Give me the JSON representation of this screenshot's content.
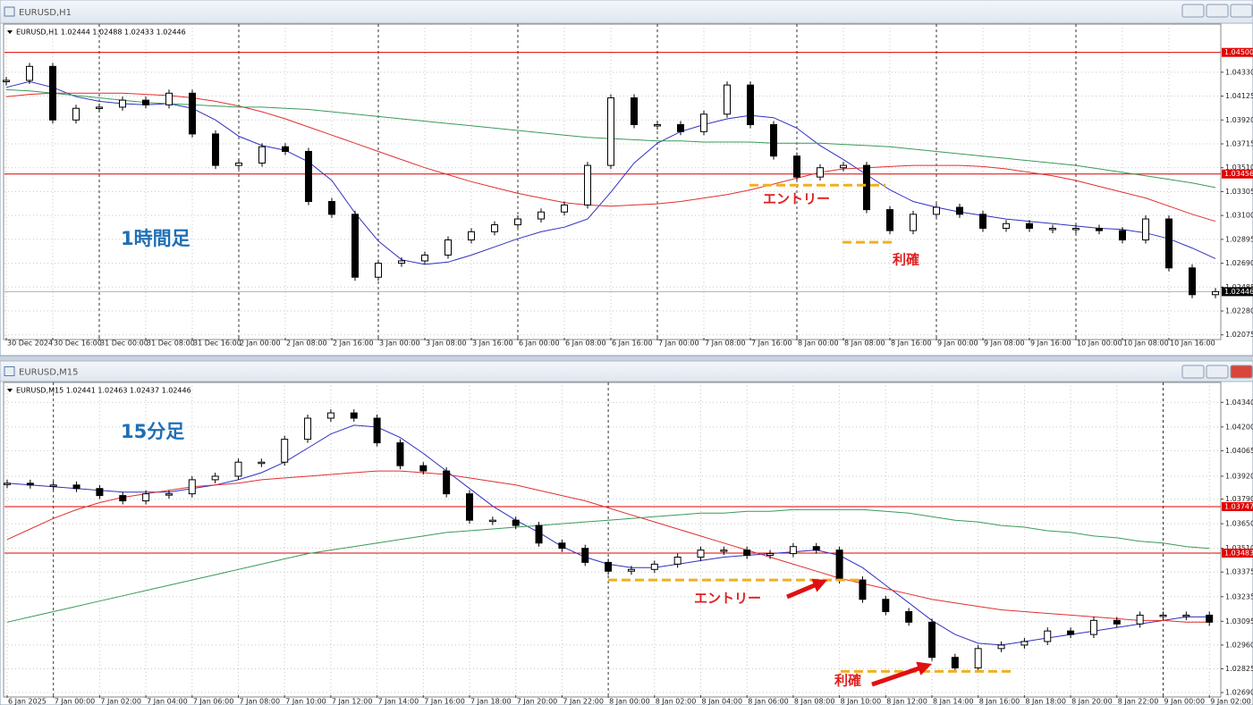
{
  "windows": [
    {
      "title": "EURUSD,H1",
      "chart_data": {
        "type": "candlestick",
        "info": "EURUSD,H1  1.02444 1.02488 1.02433 1.02446",
        "label": "1時間足",
        "categories": [
          "30 Dec 2024",
          null,
          "30 Dec 16:00",
          null,
          "31 Dec 00:00",
          null,
          "31 Dec 08:00",
          null,
          "31 Dec 16:00",
          null,
          "2 Jan 00:00",
          null,
          "2 Jan 08:00",
          null,
          "2 Jan 16:00",
          null,
          "3 Jan 00:00",
          null,
          "3 Jan 08:00",
          null,
          "3 Jan 16:00",
          null,
          "6 Jan 00:00",
          null,
          "6 Jan 08:00",
          null,
          "6 Jan 16:00",
          null,
          "7 Jan 00:00",
          null,
          "7 Jan 08:00",
          null,
          "7 Jan 16:00",
          null,
          "8 Jan 00:00",
          null,
          "8 Jan 08:00",
          null,
          "8 Jan 16:00",
          null,
          "9 Jan 00:00",
          null,
          "9 Jan 08:00",
          null,
          "9 Jan 16:00",
          null,
          "10 Jan 00:00",
          null,
          "10 Jan 08:00",
          null,
          "10 Jan 16:00",
          null,
          null
        ],
        "values": [
          1.0426,
          1.0438,
          1.0392,
          1.0402,
          1.0403,
          1.0409,
          1.0405,
          1.0415,
          1.038,
          1.0353,
          1.0355,
          1.0369,
          1.0365,
          1.0322,
          1.0311,
          1.0257,
          1.0269,
          1.0271,
          1.0276,
          1.0289,
          1.0296,
          1.0302,
          1.0307,
          1.0313,
          1.0319,
          1.0353,
          1.0411,
          1.0388,
          1.0388,
          1.0382,
          1.0397,
          1.0422,
          1.0388,
          1.0361,
          1.0343,
          1.0351,
          1.0353,
          1.0315,
          1.0297,
          1.0311,
          1.0317,
          1.0311,
          1.0299,
          1.0303,
          1.0299,
          1.0299,
          1.0299,
          1.0297,
          1.0289,
          1.0307,
          1.0265,
          1.0242,
          1.02446
        ],
        "series": [
          {
            "color": "#3030c0",
            "values": [
              1.042,
              1.0425,
              1.042,
              1.0412,
              1.0408,
              1.0406,
              1.0405,
              1.0406,
              1.0402,
              1.0392,
              1.0378,
              1.037,
              1.0366,
              1.0356,
              1.034,
              1.0312,
              1.0288,
              1.0272,
              1.0268,
              1.027,
              1.0276,
              1.0283,
              1.029,
              1.0296,
              1.03,
              1.0307,
              1.033,
              1.0355,
              1.0372,
              1.0382,
              1.0388,
              1.0393,
              1.0396,
              1.0394,
              1.0385,
              1.037,
              1.0358,
              1.0345,
              1.0332,
              1.0322,
              1.0317,
              1.0313,
              1.031,
              1.0307,
              1.0305,
              1.0303,
              1.0301,
              1.0299,
              1.0298,
              1.0295,
              1.029,
              1.0282,
              1.0273
            ]
          },
          {
            "color": "#e03030",
            "values": [
              1.0412,
              1.0414,
              1.0415,
              1.0415,
              1.0415,
              1.0415,
              1.0414,
              1.0413,
              1.0411,
              1.0408,
              1.0404,
              1.0399,
              1.0393,
              1.0386,
              1.0379,
              1.0372,
              1.0365,
              1.0358,
              1.0351,
              1.0345,
              1.0339,
              1.0334,
              1.0329,
              1.0325,
              1.0321,
              1.0319,
              1.0318,
              1.0319,
              1.032,
              1.0322,
              1.0325,
              1.0328,
              1.0332,
              1.0337,
              1.0342,
              1.0347,
              1.035,
              1.0351,
              1.0352,
              1.0353,
              1.0353,
              1.0353,
              1.0352,
              1.035,
              1.0347,
              1.0344,
              1.034,
              1.0335,
              1.033,
              1.0325,
              1.0318,
              1.0311,
              1.0305
            ]
          },
          {
            "color": "#3a9a5a",
            "values": [
              1.0418,
              1.0417,
              1.0415,
              1.0413,
              1.0411,
              1.0409,
              1.0407,
              1.0406,
              1.0405,
              1.0404,
              1.0403,
              1.0403,
              1.0402,
              1.0401,
              1.0399,
              1.0397,
              1.0395,
              1.0393,
              1.0391,
              1.0389,
              1.0387,
              1.0385,
              1.0383,
              1.0381,
              1.0379,
              1.0377,
              1.0376,
              1.0375,
              1.0374,
              1.0374,
              1.0373,
              1.0373,
              1.0373,
              1.0372,
              1.0372,
              1.0372,
              1.0371,
              1.037,
              1.0369,
              1.0367,
              1.0365,
              1.0363,
              1.0361,
              1.0359,
              1.0357,
              1.0355,
              1.0353,
              1.035,
              1.0347,
              1.0344,
              1.0341,
              1.0338,
              1.0334
            ]
          }
        ],
        "hlines": [
          {
            "value": 1.045,
            "label": "1.04500",
            "color": "#e00000"
          },
          {
            "value": 1.03456,
            "label": "1.03456",
            "color": "#e00000"
          },
          {
            "value": 1.02446,
            "label": "1.02446",
            "color": "#000000"
          }
        ],
        "annotations": [
          {
            "text": "エントリー",
            "level": 1.0336
          },
          {
            "text": "利確",
            "level": 1.0287
          }
        ],
        "ylim": [
          1.0205,
          1.0472
        ],
        "yticks": [
          {
            "value": 1.0433,
            "label": "1.04330"
          },
          {
            "value": 1.04125,
            "label": "1.04125"
          },
          {
            "value": 1.0392,
            "label": "1.03920"
          },
          {
            "value": 1.03715,
            "label": "1.03715"
          },
          {
            "value": 1.0351,
            "label": "1.03510"
          },
          {
            "value": 1.03305,
            "label": "1.03305"
          },
          {
            "value": 1.031,
            "label": "1.03100"
          },
          {
            "value": 1.02895,
            "label": "1.02895"
          },
          {
            "value": 1.0269,
            "label": "1.02690"
          },
          {
            "value": 1.02485,
            "label": "1.02485"
          },
          {
            "value": 1.0228,
            "label": "1.02280"
          },
          {
            "value": 1.02075,
            "label": "1.02075"
          }
        ],
        "grid": true
      }
    },
    {
      "title": "EURUSD,M15",
      "chart_data": {
        "type": "candlestick",
        "info": "EURUSD,M15  1.02441 1.02463 1.02437 1.02446",
        "label": "15分足",
        "categories": [
          "6 Jan 2025",
          null,
          "7 Jan 00:00",
          null,
          "7 Jan 02:00",
          null,
          "7 Jan 04:00",
          null,
          "7 Jan 06:00",
          null,
          "7 Jan 08:00",
          null,
          "7 Jan 10:00",
          null,
          "7 Jan 12:00",
          null,
          "7 Jan 14:00",
          null,
          "7 Jan 16:00",
          null,
          "7 Jan 18:00",
          null,
          "7 Jan 20:00",
          null,
          "7 Jan 22:00",
          null,
          "8 Jan 00:00",
          null,
          "8 Jan 02:00",
          null,
          "8 Jan 04:00",
          null,
          "8 Jan 06:00",
          null,
          "8 Jan 08:00",
          null,
          "8 Jan 10:00",
          null,
          "8 Jan 12:00",
          null,
          "8 Jan 14:00",
          null,
          "8 Jan 16:00",
          null,
          "8 Jan 18:00",
          null,
          "8 Jan 20:00",
          null,
          "8 Jan 22:00",
          null,
          "9 Jan 00:00",
          null,
          "9 Jan 02:00"
        ],
        "values": [
          1.0388,
          1.0387,
          1.0387,
          1.0385,
          1.0381,
          1.0378,
          1.0382,
          1.0382,
          1.039,
          1.0392,
          1.04,
          1.04,
          1.0413,
          1.0425,
          1.0428,
          1.0425,
          1.0411,
          1.0398,
          1.0395,
          1.0382,
          1.0367,
          1.0367,
          1.0364,
          1.0354,
          1.0351,
          1.0343,
          1.0338,
          1.0339,
          1.0342,
          1.0346,
          1.035,
          1.035,
          1.0347,
          1.0348,
          1.0352,
          1.035,
          1.0333,
          1.0322,
          1.0315,
          1.0309,
          1.0289,
          1.0283,
          1.0294,
          1.0296,
          1.0298,
          1.0304,
          1.0302,
          1.031,
          1.0308,
          1.0313,
          1.0313,
          1.0313,
          1.0309
        ],
        "series": [
          {
            "color": "#3030c0",
            "values": [
              1.0388,
              1.0387,
              1.0386,
              1.0385,
              1.0384,
              1.0383,
              1.0383,
              1.0383,
              1.0385,
              1.0387,
              1.039,
              1.0394,
              1.04,
              1.0408,
              1.0416,
              1.0421,
              1.042,
              1.0414,
              1.0405,
              1.0395,
              1.0385,
              1.0375,
              1.0367,
              1.036,
              1.0352,
              1.0346,
              1.0342,
              1.034,
              1.034,
              1.0342,
              1.0344,
              1.0346,
              1.0347,
              1.0348,
              1.0349,
              1.035,
              1.0347,
              1.034,
              1.033,
              1.032,
              1.031,
              1.0302,
              1.0297,
              1.0296,
              1.0298,
              1.03,
              1.0302,
              1.0304,
              1.0306,
              1.0308,
              1.031,
              1.0312,
              1.0312
            ]
          },
          {
            "color": "#e03030",
            "values": [
              1.0356,
              1.0362,
              1.0368,
              1.0373,
              1.0377,
              1.038,
              1.0382,
              1.0384,
              1.0386,
              1.0387,
              1.0388,
              1.039,
              1.0391,
              1.0392,
              1.0393,
              1.0394,
              1.0395,
              1.0395,
              1.0394,
              1.0393,
              1.0391,
              1.0389,
              1.0387,
              1.0384,
              1.0381,
              1.0378,
              1.0374,
              1.037,
              1.0366,
              1.0362,
              1.0358,
              1.0354,
              1.035,
              1.0346,
              1.0342,
              1.0338,
              1.0334,
              1.0331,
              1.0328,
              1.0325,
              1.0322,
              1.032,
              1.0318,
              1.0316,
              1.0315,
              1.0314,
              1.0313,
              1.0312,
              1.0311,
              1.031,
              1.031,
              1.0309,
              1.0309
            ]
          },
          {
            "color": "#3a9a5a",
            "values": [
              1.0309,
              1.0312,
              1.0315,
              1.0318,
              1.0321,
              1.0324,
              1.0327,
              1.033,
              1.0333,
              1.0336,
              1.0339,
              1.0342,
              1.0345,
              1.0348,
              1.035,
              1.0352,
              1.0354,
              1.0356,
              1.0358,
              1.036,
              1.0361,
              1.0362,
              1.0363,
              1.0364,
              1.0365,
              1.0366,
              1.0367,
              1.0368,
              1.0369,
              1.037,
              1.0371,
              1.0371,
              1.0372,
              1.0372,
              1.0373,
              1.0373,
              1.0373,
              1.0373,
              1.0372,
              1.0371,
              1.0369,
              1.0367,
              1.0366,
              1.0364,
              1.0363,
              1.0361,
              1.036,
              1.0358,
              1.0357,
              1.0355,
              1.0354,
              1.0352,
              1.0351
            ]
          }
        ],
        "hlines": [
          {
            "value": 1.03747,
            "label": "1.03747",
            "color": "#e00000"
          },
          {
            "value": 1.03483,
            "label": "1.03483",
            "color": "#e00000"
          }
        ],
        "annotations": [
          {
            "text": "エントリー",
            "level": 1.0333
          },
          {
            "text": "利確",
            "level": 1.0281
          }
        ],
        "ylim": [
          1.02675,
          1.04433
        ],
        "yticks": [
          {
            "value": 1.0434,
            "label": "1.04340"
          },
          {
            "value": 1.042,
            "label": "1.04200"
          },
          {
            "value": 1.04065,
            "label": "1.04065"
          },
          {
            "value": 1.0392,
            "label": "1.03920"
          },
          {
            "value": 1.0379,
            "label": "1.03790"
          },
          {
            "value": 1.0365,
            "label": "1.03650"
          },
          {
            "value": 1.0351,
            "label": "1.03510"
          },
          {
            "value": 1.03375,
            "label": "1.03375"
          },
          {
            "value": 1.03235,
            "label": "1.03235"
          },
          {
            "value": 1.03095,
            "label": "1.03095"
          },
          {
            "value": 1.0296,
            "label": "1.02960"
          },
          {
            "value": 1.02825,
            "label": "1.02825"
          },
          {
            "value": 1.0269,
            "label": "1.02690"
          }
        ],
        "grid": true
      }
    }
  ]
}
